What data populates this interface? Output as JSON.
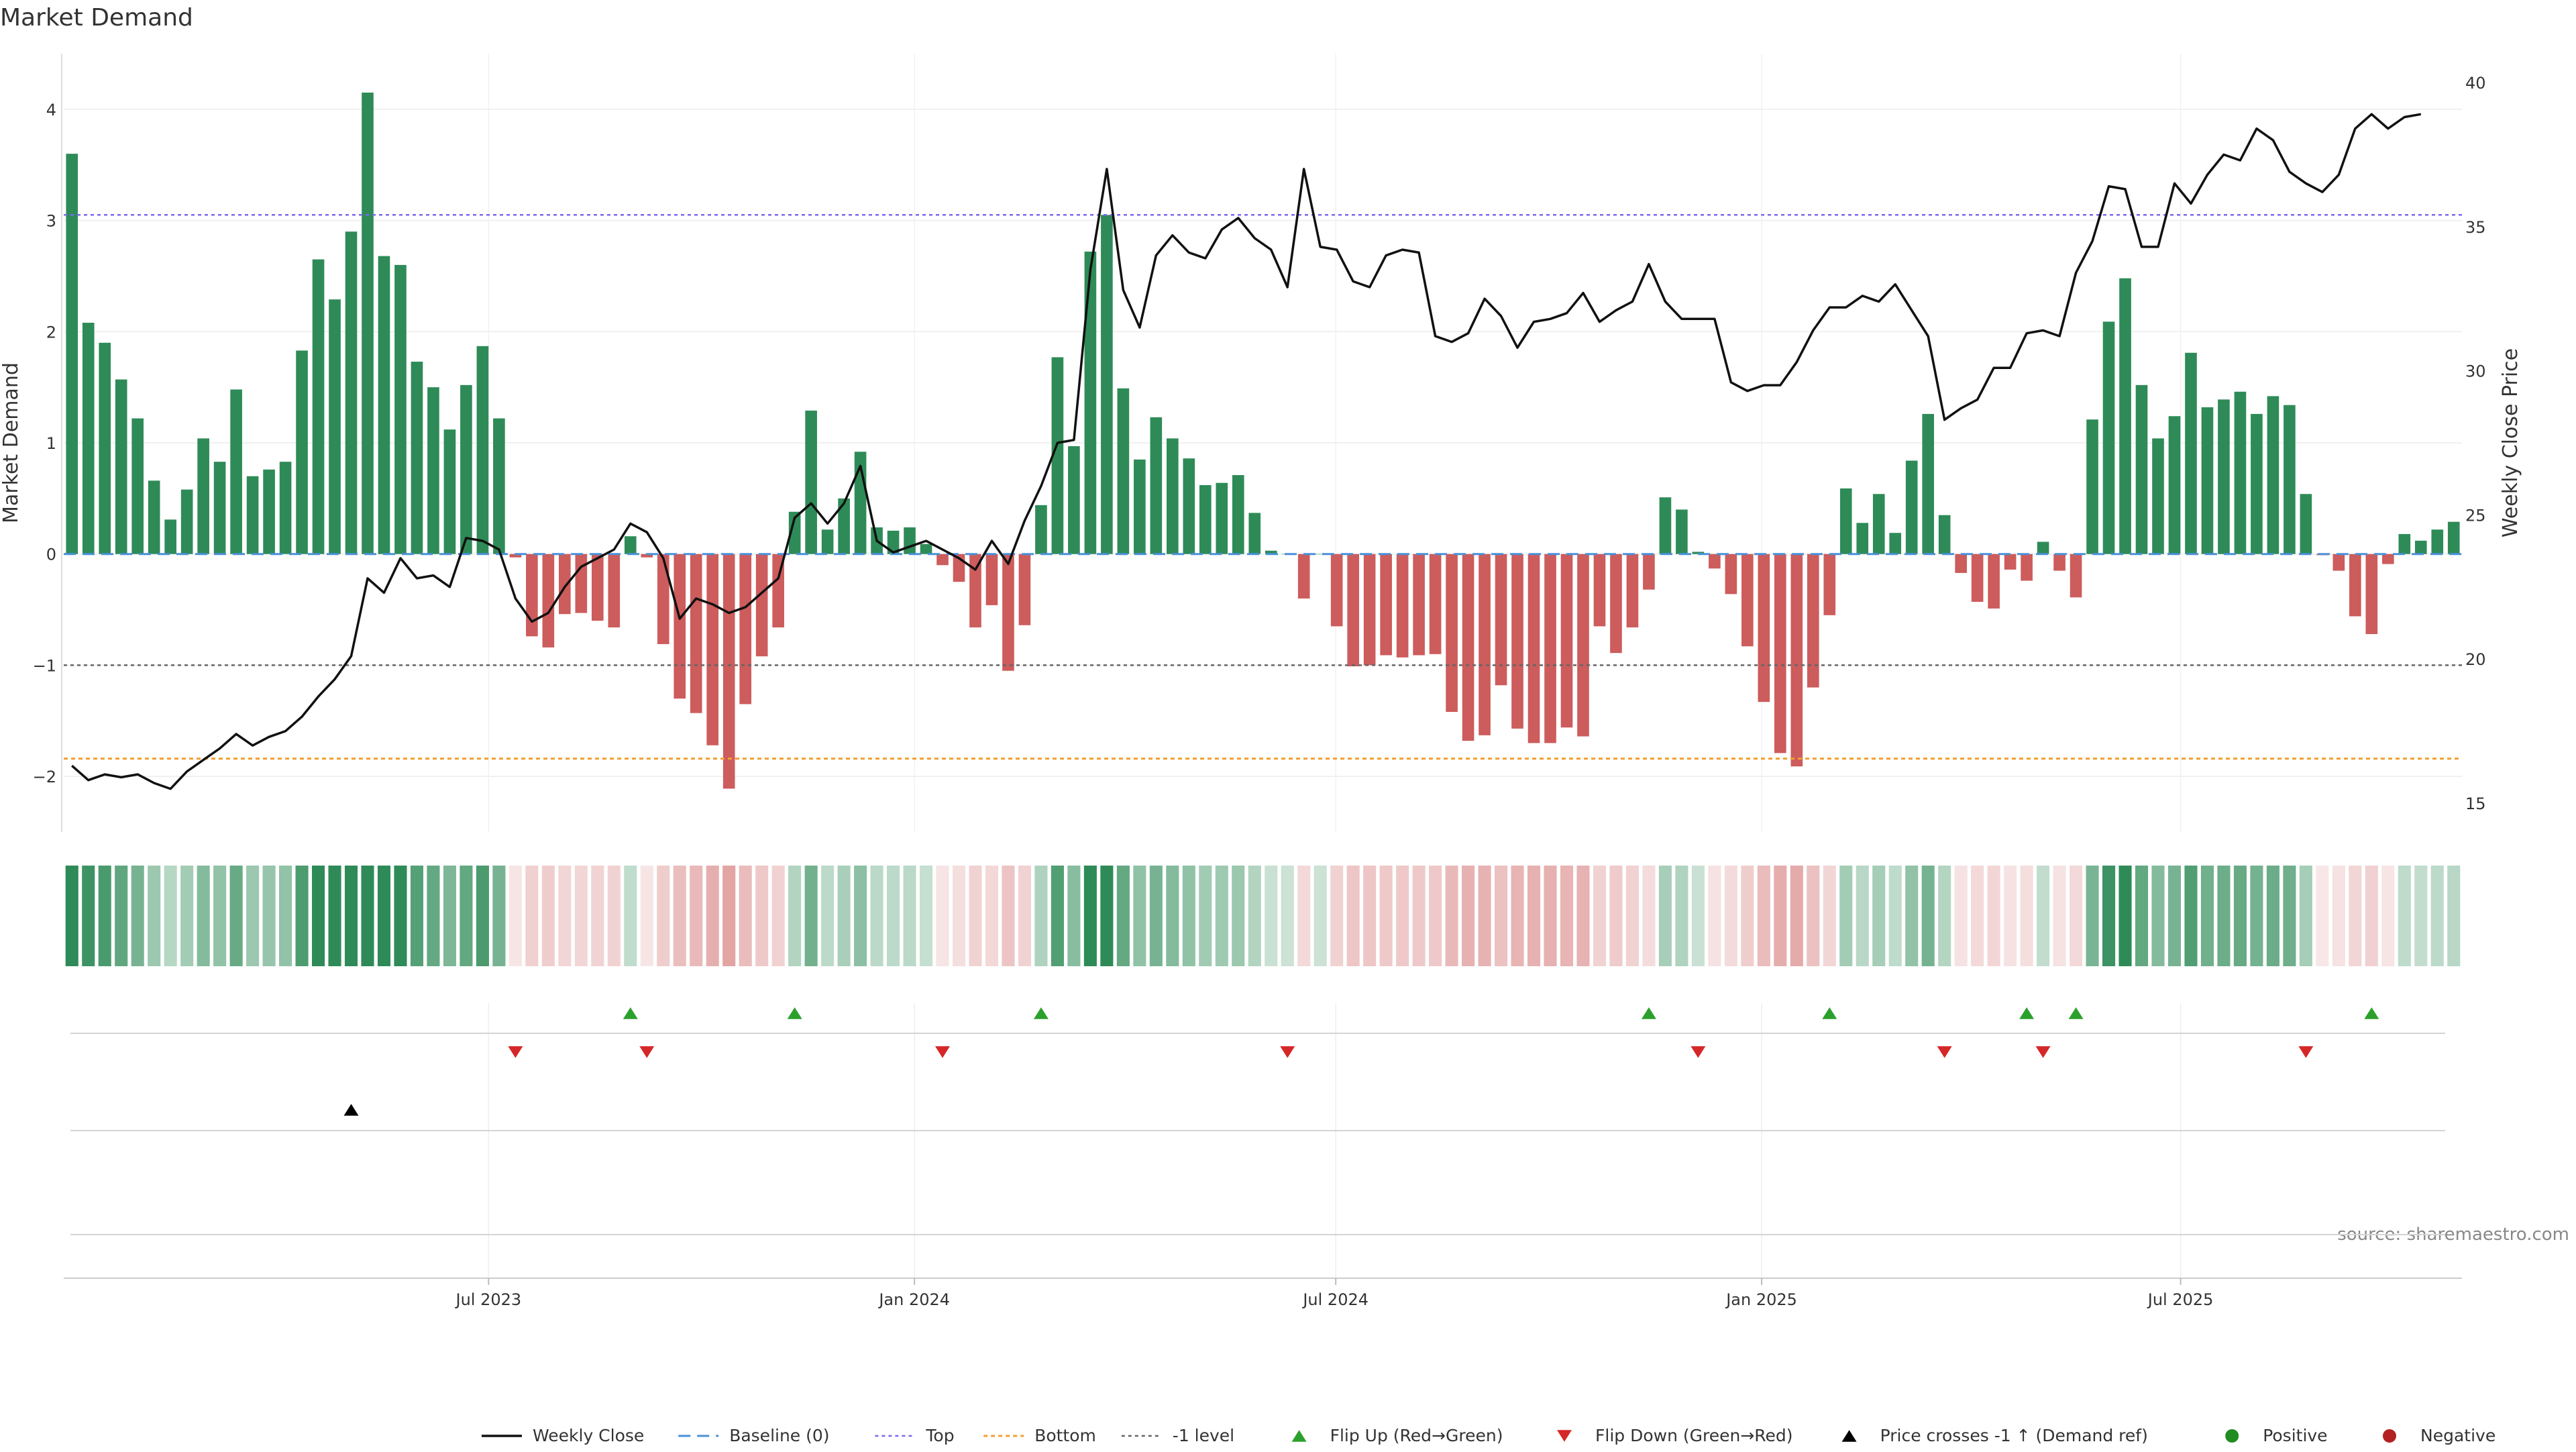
{
  "chart_data": {
    "type": "bar",
    "title": "Market Demand",
    "ylabel": "Market Demand",
    "y2label": "Weekly Close Price",
    "ylim": [
      -2.5,
      4.5
    ],
    "y2lim": [
      14,
      41
    ],
    "y_ticks": [
      4,
      3,
      2,
      1,
      0,
      -1,
      -2
    ],
    "y_tick_labels": [
      "4",
      "3",
      "2",
      "1",
      "0",
      "−1",
      "−2"
    ],
    "y2_ticks": [
      40,
      35,
      30,
      25,
      20,
      15
    ],
    "y2_tick_labels": [
      "40",
      "35",
      "30",
      "25",
      "20",
      "15"
    ],
    "x_start": "2023-01-02",
    "x_end": "2025-10-27",
    "x_tick_dates": [
      "2023-07-01",
      "2024-01-01",
      "2024-07-01",
      "2025-01-01",
      "2025-07-01"
    ],
    "x_tick_labels": [
      "Jul 2023",
      "Jan 2024",
      "Jul 2024",
      "Jan 2025",
      "Jul 2025"
    ],
    "reference_lines": {
      "baseline": 0,
      "top": 3.05,
      "bottom": -1.84,
      "minus_one": -1
    },
    "colors": {
      "positive": "#2e8b57",
      "negative": "#cd5c5c",
      "price_line": "#111111",
      "baseline": "#4a90d9",
      "top": "#7b68ee",
      "bottom": "#f0a030",
      "minus_one": "#666666",
      "flip_up": "#2ca02c",
      "flip_down": "#d62728",
      "cross": "#000000",
      "legend_positive": "#228b22",
      "legend_negative": "#b22222"
    },
    "demand": [
      3.6,
      2.08,
      1.9,
      1.57,
      1.22,
      0.66,
      0.31,
      0.58,
      1.04,
      0.83,
      1.48,
      0.7,
      0.76,
      0.83,
      1.83,
      2.65,
      2.29,
      2.9,
      4.15,
      2.68,
      2.6,
      1.73,
      1.5,
      1.12,
      1.52,
      1.87,
      1.22,
      -0.03,
      -0.74,
      -0.84,
      -0.54,
      -0.53,
      -0.6,
      -0.66,
      0.16,
      -0.03,
      -0.81,
      -1.3,
      -1.43,
      -1.72,
      -2.11,
      -1.35,
      -0.92,
      -0.66,
      0.38,
      1.29,
      0.22,
      0.5,
      0.92,
      0.24,
      0.21,
      0.24,
      0.09,
      -0.1,
      -0.25,
      -0.66,
      -0.46,
      -1.05,
      -0.64,
      0.44,
      1.77,
      0.97,
      2.72,
      3.05,
      1.49,
      0.85,
      1.23,
      1.04,
      0.86,
      0.62,
      0.64,
      0.71,
      0.37,
      0.03,
      0.0,
      -0.4,
      0.0,
      -0.65,
      -1.01,
      -1.0,
      -0.91,
      -0.93,
      -0.91,
      -0.9,
      -1.42,
      -1.68,
      -1.63,
      -1.18,
      -1.57,
      -1.7,
      -1.7,
      -1.56,
      -1.64,
      -0.65,
      -0.89,
      -0.66,
      -0.32,
      0.51,
      0.4,
      0.02,
      -0.13,
      -0.36,
      -0.83,
      -1.33,
      -1.79,
      -1.91,
      -1.2,
      -0.55,
      0.59,
      0.28,
      0.54,
      0.19,
      0.84,
      1.26,
      0.35,
      -0.17,
      -0.43,
      -0.49,
      -0.14,
      -0.24,
      0.11,
      -0.15,
      -0.39,
      1.21,
      2.09,
      2.48,
      1.52,
      1.04,
      1.24,
      1.81,
      1.32,
      1.39,
      1.46,
      1.26,
      1.42,
      1.34,
      0.54,
      -0.01,
      -0.15,
      -0.56,
      -0.72,
      -0.09,
      0.18,
      0.12,
      0.22,
      0.29
    ],
    "close": [
      16.3,
      15.8,
      16.0,
      15.9,
      16.0,
      15.7,
      15.5,
      16.1,
      16.5,
      16.9,
      17.4,
      17.0,
      17.3,
      17.5,
      18.0,
      18.7,
      19.3,
      20.1,
      22.8,
      22.3,
      23.5,
      22.8,
      22.9,
      22.5,
      24.2,
      24.1,
      23.8,
      22.1,
      21.3,
      21.6,
      22.5,
      23.2,
      23.5,
      23.8,
      24.7,
      24.4,
      23.5,
      21.4,
      22.1,
      21.9,
      21.6,
      21.8,
      22.3,
      22.8,
      24.9,
      25.4,
      24.7,
      25.4,
      26.7,
      24.1,
      23.7,
      23.9,
      24.1,
      23.8,
      23.5,
      23.1,
      24.1,
      23.3,
      24.8,
      26.0,
      27.5,
      27.6,
      33.5,
      37.0,
      32.8,
      31.5,
      34.0,
      34.7,
      34.1,
      33.9,
      34.9,
      35.3,
      34.6,
      34.2,
      32.9,
      37.0,
      34.3,
      34.2,
      33.1,
      32.9,
      34.0,
      34.2,
      34.1,
      31.2,
      31.0,
      31.3,
      32.5,
      31.9,
      30.8,
      31.7,
      31.8,
      32.0,
      32.7,
      31.7,
      32.1,
      32.4,
      33.7,
      32.4,
      31.8,
      31.8,
      31.8,
      29.6,
      29.3,
      29.5,
      29.5,
      30.3,
      31.4,
      32.2,
      32.2,
      32.6,
      32.4,
      33.0,
      32.1,
      31.2,
      28.3,
      28.7,
      29.0,
      30.1,
      30.1,
      31.3,
      31.4,
      31.2,
      33.4,
      34.5,
      36.4,
      36.3,
      34.3,
      34.3,
      36.5,
      35.8,
      36.8,
      37.5,
      37.3,
      38.4,
      38.0,
      36.9,
      36.5,
      36.2,
      36.8,
      38.4,
      38.9,
      38.4,
      38.8,
      38.9
    ],
    "flip_up_indices": [
      34,
      44,
      59,
      96,
      107,
      119,
      122,
      140
    ],
    "flip_down_indices": [
      27,
      35,
      53,
      74,
      99,
      114,
      120,
      136
    ],
    "cross_up_indices": [
      17
    ],
    "legend": [
      "Weekly Close",
      "Baseline (0)",
      "Top",
      "Bottom",
      "-1 level",
      "Flip Up (Red→Green)",
      "Flip Down (Green→Red)",
      "Price crosses -1 ↑ (Demand ref)",
      "Positive",
      "Negative"
    ],
    "source": "source: sharemaestro.com"
  }
}
